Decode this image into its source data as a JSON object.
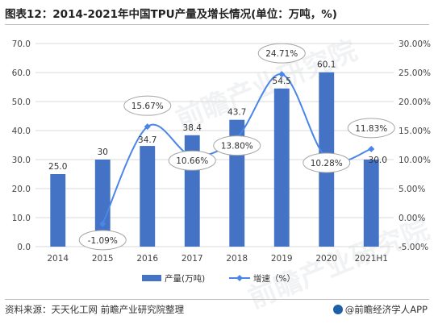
{
  "title": "图表12：2014-2021年中国TPU产量及增长情况(单位：万吨，%)",
  "source": "资料来源：天天化工网 前瞻产业研究院整理",
  "credit": "@前瞻经济学人APP",
  "watermark": "前瞻产业研究院",
  "colors": {
    "bar": "#4472c4",
    "line": "#4a86e8",
    "grid": "#d9d9d9",
    "bubble_fill": "#ffffff",
    "bubble_stroke": "#a6a6a6"
  },
  "chart_data": {
    "type": "bar",
    "categories": [
      "2014",
      "2015",
      "2016",
      "2017",
      "2018",
      "2019",
      "2020",
      "2021H1"
    ],
    "series": [
      {
        "name": "产量(万吨)",
        "type": "bar",
        "axis": "left",
        "values": [
          25.0,
          30,
          34.7,
          38.4,
          43.7,
          54.5,
          60.1,
          30.0
        ],
        "labels": [
          "25.0",
          "30",
          "34.7",
          "38.4",
          "43.7",
          "54.5",
          "60.1",
          "30.0"
        ]
      },
      {
        "name": "增速（%）",
        "type": "line",
        "axis": "right",
        "values": [
          null,
          -1.09,
          15.67,
          10.66,
          13.8,
          24.71,
          10.28,
          11.83
        ],
        "labels": [
          "",
          "-1.09%",
          "15.67%",
          "10.66%",
          "13.80%",
          "24.71%",
          "10.28%",
          "11.83%"
        ]
      }
    ],
    "ylim_left": [
      0,
      70
    ],
    "ylim_right": [
      -5,
      30
    ],
    "left_ticks": [
      "0.0",
      "10.0",
      "20.0",
      "30.0",
      "40.0",
      "50.0",
      "60.0",
      "70.0"
    ],
    "right_ticks": [
      "-5.00%",
      "0.00%",
      "5.00%",
      "10.00%",
      "15.00%",
      "20.00%",
      "25.00%",
      "30.00%"
    ],
    "grid": true,
    "legend_position": "bottom"
  }
}
